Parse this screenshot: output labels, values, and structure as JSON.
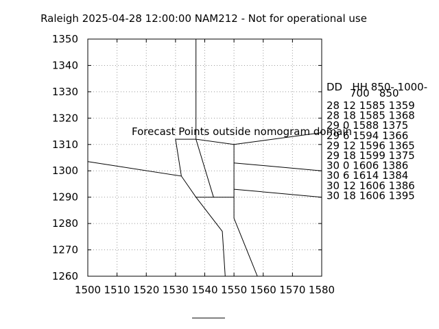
{
  "chart_data": {
    "type": "line",
    "title": "Raleigh 2025-04-28 12:00:00 NAM212 - Not for operational use",
    "xlabel": "",
    "ylabel": "",
    "xlim": [
      1500,
      1580
    ],
    "ylim": [
      1260,
      1350
    ],
    "x_ticks": [
      1500,
      1510,
      1520,
      1530,
      1540,
      1550,
      1560,
      1570,
      1580
    ],
    "y_ticks": [
      1260,
      1270,
      1280,
      1290,
      1300,
      1310,
      1320,
      1330,
      1340,
      1350
    ],
    "grid": true,
    "warning_text": "Forecast Points outside nomogram domain",
    "warning_color": "#ff0000",
    "line_color": "#000000",
    "table": {
      "header_line1": "DD   HH 850- 1000-",
      "header_line2": "700   850",
      "rows": [
        "28 12 1585 1359",
        "28 18 1585 1368",
        "29  0 1588 1375",
        "29  6 1594 1366",
        "29 12 1596 1365",
        "29 18 1599 1375",
        "30  0 1606 1386",
        "30  6 1614 1384",
        "30 12 1606 1386",
        "30 18 1606 1395"
      ]
    },
    "series": [
      {
        "values": [
          [
            1500,
            1303.5
          ],
          [
            1532,
            1298
          ],
          [
            1537,
            1290
          ],
          [
            1546,
            1277
          ],
          [
            1547,
            1260
          ]
        ]
      },
      {
        "values": [
          [
            1532,
            1298
          ],
          [
            1530,
            1312
          ],
          [
            1537,
            1312
          ]
        ]
      },
      {
        "values": [
          [
            1537,
            1350
          ],
          [
            1537,
            1312
          ],
          [
            1550,
            1310
          ],
          [
            1580,
            1314.5
          ]
        ]
      },
      {
        "values": [
          [
            1537,
            1312
          ],
          [
            1543,
            1290
          ],
          [
            1550,
            1290
          ],
          [
            1550,
            1310
          ]
        ]
      },
      {
        "values": [
          [
            1537,
            1290
          ],
          [
            1543,
            1290
          ]
        ]
      },
      {
        "values": [
          [
            1550,
            1303
          ],
          [
            1580,
            1300
          ]
        ]
      },
      {
        "values": [
          [
            1550,
            1293
          ],
          [
            1580,
            1290
          ]
        ]
      },
      {
        "values": [
          [
            1550,
            1290
          ],
          [
            1550,
            1282
          ],
          [
            1558,
            1260
          ]
        ]
      }
    ]
  }
}
